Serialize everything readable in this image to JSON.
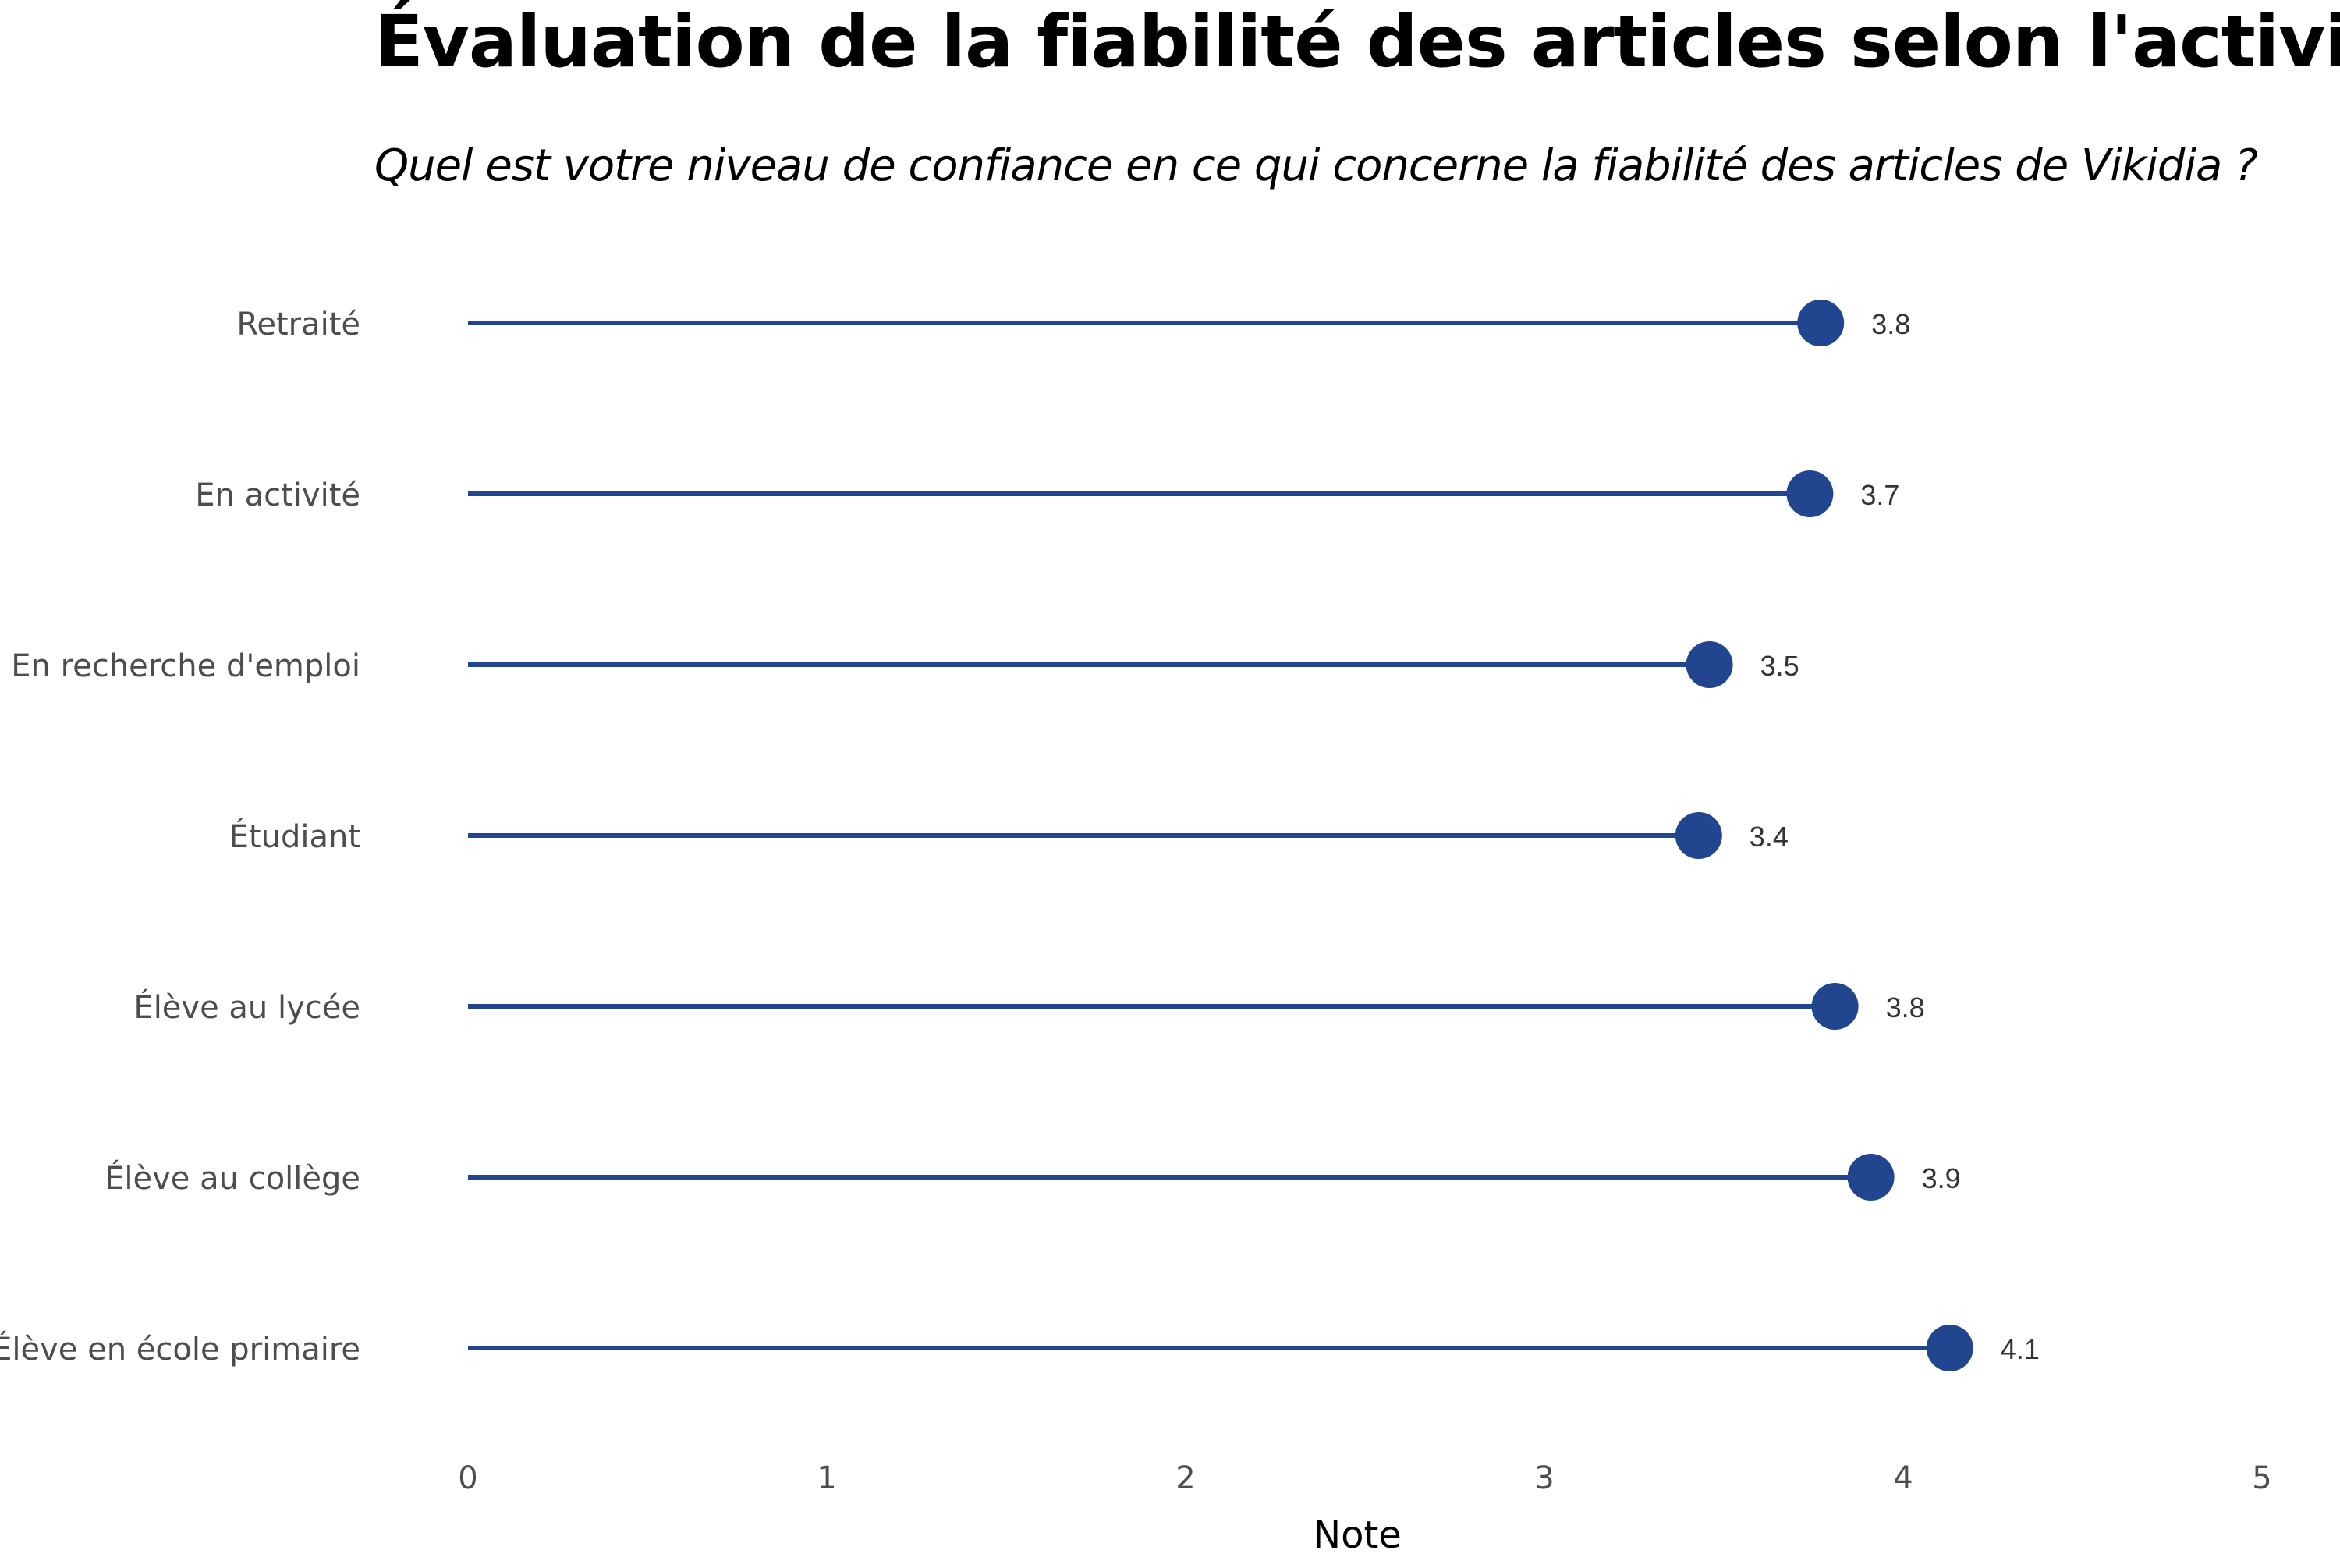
{
  "chart_data": {
    "type": "lollipop",
    "title": "Évaluation de la fiabilité des articles selon l'activité",
    "subtitle": "Quel est votre niveau de confiance en ce qui concerne la fiabilité des articles de Vikidia ?",
    "xlabel": "Note",
    "ylabel": "",
    "xlim": [
      0,
      5
    ],
    "x_ticks": [
      "0",
      "1",
      "2",
      "3",
      "4",
      "5"
    ],
    "grid": false,
    "categories": [
      "Retraité",
      "En activité",
      "En recherche d'emploi",
      "Étudiant",
      "Élève au lycée",
      "Élève au collège",
      "Élève en école primaire"
    ],
    "values": [
      3.77,
      3.74,
      3.46,
      3.43,
      3.81,
      3.91,
      4.13
    ],
    "value_labels": [
      "3.8",
      "3.7",
      "3.5",
      "3.4",
      "3.8",
      "3.9",
      "4.1"
    ],
    "color": "#21468f"
  }
}
